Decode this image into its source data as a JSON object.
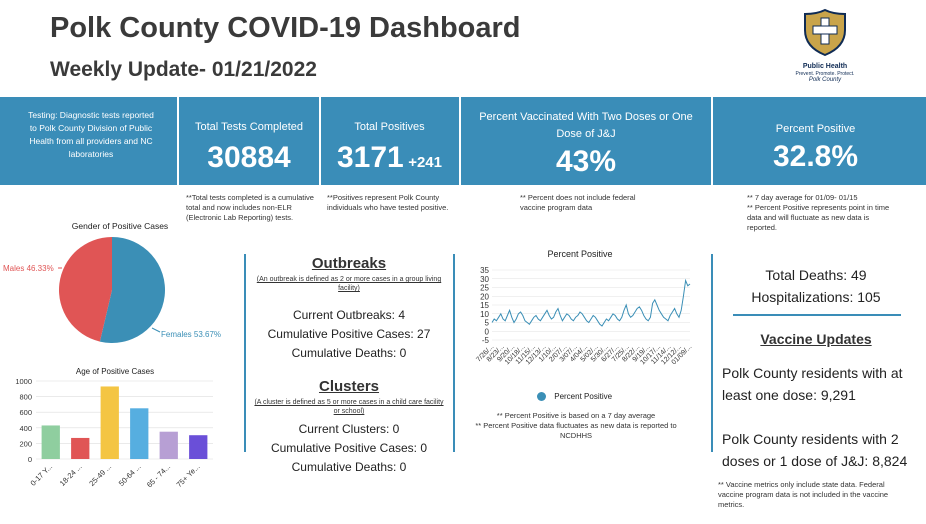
{
  "header": {
    "title": "Polk County COVID-19 Dashboard",
    "subtitle": "Weekly Update- 01/21/2022",
    "logo_line1": "Public Health",
    "logo_line2": "Prevent. Promote. Protect.",
    "logo_line3": "Polk County"
  },
  "banner": {
    "testing_desc": "Testing: Diagnostic tests reported to Polk County Division of Public Health from all providers and NC laboratories",
    "total_tests_label": "Total Tests Completed",
    "total_tests_value": "30884",
    "total_positives_label": "Total Positives",
    "total_positives_value": "3171",
    "total_positives_delta": "+241",
    "vaccinated_label": "Percent Vaccinated With Two Doses or One Dose of J&J",
    "vaccinated_value": "43%",
    "percent_positive_label": "Percent Positive",
    "percent_positive_value": "32.8%"
  },
  "notes": {
    "tests_note": "**Total tests completed is a cumulative total and now includes non-ELR (Electronic Lab Reporting) tests.",
    "positives_note": "**Positives represent Polk County individuals who have tested positive.",
    "vaccine_note": "** Percent does not include federal vaccine program data",
    "pp_note": "** 7 day average for 01/09- 01/15\n** Percent Positive represents point in time data and will fluctuate as new data is reported."
  },
  "outbreaks": {
    "title": "Outbreaks",
    "definition": "(An outbreak is defined as 2 or more cases in a group living facility)",
    "current": "Current Outbreaks: 4",
    "cumulative_cases": "Cumulative Positive Cases: 27",
    "cumulative_deaths": "Cumulative Deaths: 0"
  },
  "clusters": {
    "title": "Clusters",
    "definition": "(A cluster is defined as 5 or more cases in a child care facility or school)",
    "current": "Current Clusters: 0",
    "cumulative_cases": "Cumulative Positive Cases: 0",
    "cumulative_deaths": "Cumulative Deaths: 0"
  },
  "right_panel": {
    "total_deaths": "Total Deaths: 49",
    "hospitalizations": "Hospitalizations: 105",
    "vaccine_updates_title": "Vaccine Updates",
    "one_dose": "Polk County residents with at least one dose: 9,291",
    "two_doses": "Polk County residents with 2 doses or 1 dose of J&J: 8,824",
    "vaccine_metrics_note": "** Vaccine metrics only include state data. Federal vaccine program data is not included in the vaccine metrics."
  },
  "line_notes": {
    "n1": "** Percent Positive is based on a 7 day average",
    "n2": "** Percent Positive data fluctuates as new data is reported to NCDHHS"
  },
  "colors": {
    "banner": "#3a8db8",
    "male": "#e05555",
    "female": "#3b8fb6"
  },
  "chart_data": [
    {
      "type": "pie",
      "title": "Gender of Positive Cases",
      "labels": [
        "Males",
        "Females"
      ],
      "values": [
        46.33,
        53.67
      ],
      "label_text": [
        "Males 46.33%",
        "Females 53.67%"
      ],
      "colors": [
        "#e05555",
        "#3b8fb6"
      ]
    },
    {
      "type": "bar",
      "title": "Age of Positive Cases",
      "categories": [
        "0-17 Y...",
        "18-24 ...",
        "25-49 ...",
        "50-64 ...",
        "65 - 74...",
        "75+ Ye..."
      ],
      "values": [
        430,
        270,
        930,
        650,
        350,
        305
      ],
      "colors": [
        "#8fce9f",
        "#e05555",
        "#f4c543",
        "#56aee0",
        "#b79fd4",
        "#6a4fd8"
      ],
      "ylim": [
        0,
        1000
      ],
      "yticks": [
        0,
        200,
        400,
        600,
        800,
        1000
      ]
    },
    {
      "type": "line",
      "title": "Percent Positive",
      "legend": "Percent Positive",
      "ylim": [
        -5,
        35
      ],
      "yticks": [
        -5,
        0,
        5,
        10,
        15,
        20,
        25,
        30,
        35
      ],
      "x_tick_labels": [
        "7/26/...",
        "8/23/...",
        "9/20/...",
        "10/18/...",
        "11/15/...",
        "12/13/...",
        "1/10/...",
        "2/07/...",
        "3/07/...",
        "4/04/...",
        "5/02/...",
        "5/30/...",
        "6/27/...",
        "7/25/...",
        "8/22/...",
        "9/19/...",
        "10/17/...",
        "11/14/...",
        "12/12/...",
        "01/09/..."
      ],
      "values": [
        5,
        7,
        6,
        8,
        10,
        7,
        6,
        9,
        12,
        8,
        5,
        7,
        10,
        11,
        9,
        6,
        5,
        4,
        6,
        8,
        9,
        7,
        6,
        8,
        10,
        12,
        9,
        7,
        8,
        11,
        13,
        9,
        6,
        8,
        10,
        9,
        7,
        6,
        8,
        9,
        11,
        10,
        8,
        6,
        5,
        7,
        9,
        8,
        6,
        4,
        3,
        5,
        7,
        6,
        8,
        10,
        9,
        7,
        6,
        8,
        12,
        15,
        10,
        8,
        9,
        11,
        13,
        14,
        12,
        9,
        7,
        6,
        8,
        16,
        18,
        15,
        12,
        10,
        8,
        7,
        6,
        9,
        11,
        13,
        10,
        8,
        12,
        20,
        29,
        26,
        27
      ]
    }
  ]
}
